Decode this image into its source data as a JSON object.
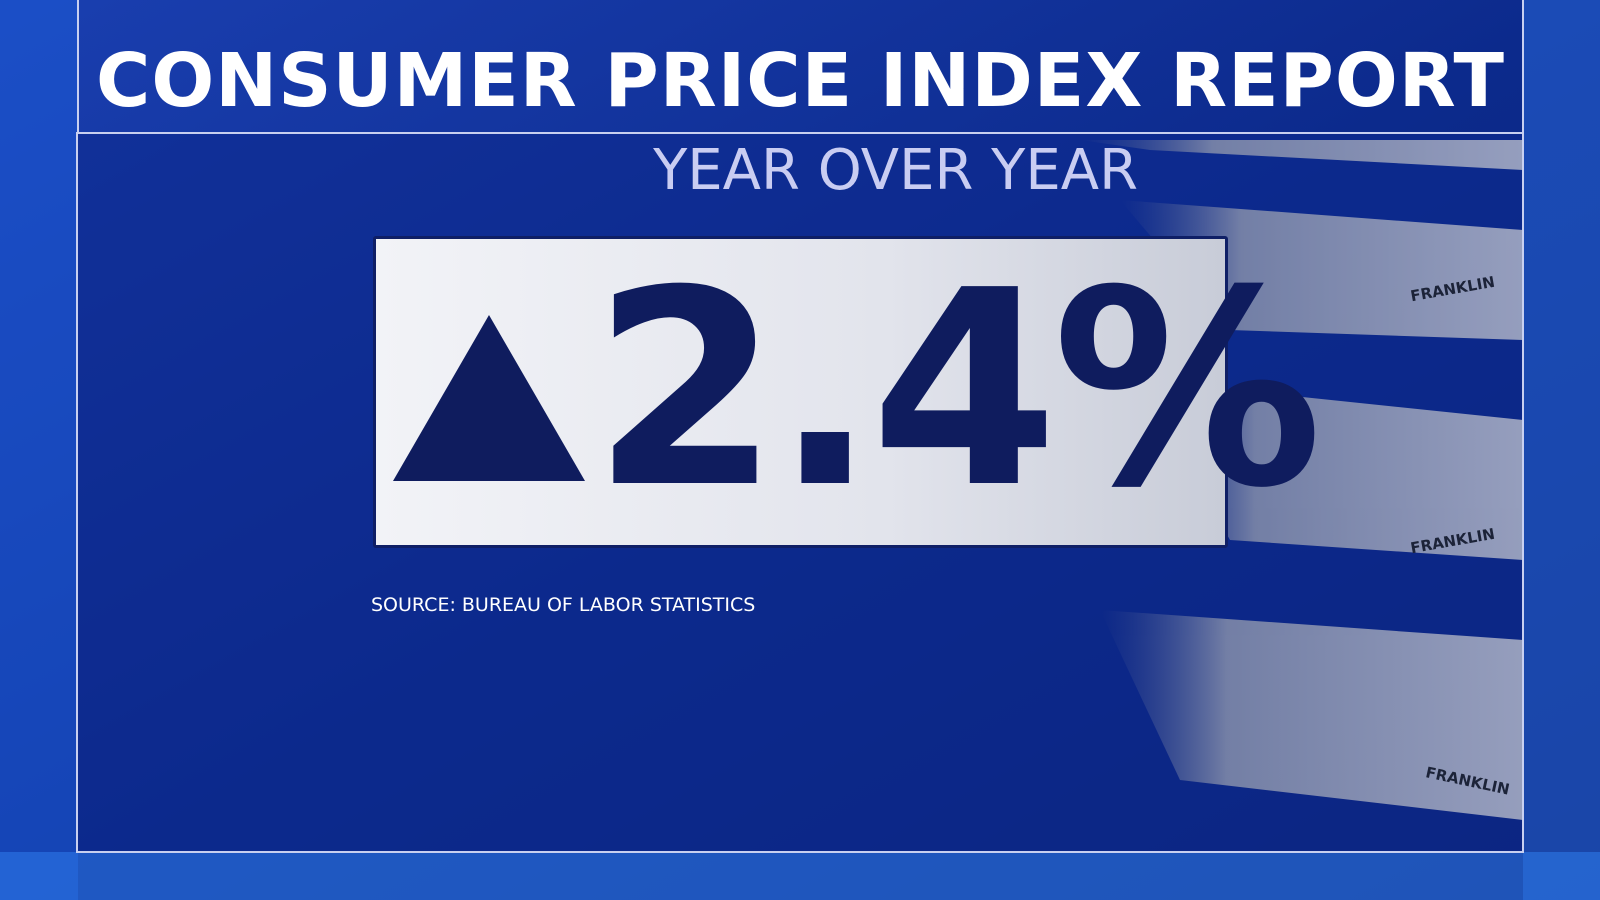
{
  "header": {
    "title": "CONSUMER PRICE INDEX REPORT"
  },
  "panel": {
    "subtitle": "YEAR OVER YEAR",
    "figure": "2.4%",
    "source": "SOURCE: BUREAU OF LABOR STATISTICS"
  },
  "banknotes": {
    "labels": [
      "FRANKLIN",
      "FRANKLIN",
      "FRANKLIN"
    ]
  }
}
